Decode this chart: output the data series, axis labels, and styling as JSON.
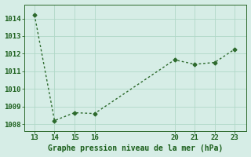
{
  "x": [
    13,
    14,
    15,
    16,
    20,
    21,
    22,
    23
  ],
  "y": [
    1014.2,
    1008.2,
    1008.65,
    1008.6,
    1011.65,
    1011.4,
    1011.5,
    1012.25
  ],
  "xticks": [
    13,
    14,
    15,
    16,
    20,
    21,
    22,
    23
  ],
  "yticks": [
    1008,
    1009,
    1010,
    1011,
    1012,
    1013,
    1014
  ],
  "xlim": [
    12.5,
    23.6
  ],
  "ylim": [
    1007.6,
    1014.8
  ],
  "line_color": "#2d6a2d",
  "marker": "D",
  "marker_size": 2.5,
  "line_width": 1.0,
  "bg_color": "#d6ede6",
  "grid_color": "#b0d8c8",
  "xlabel": "Graphe pression niveau de la mer (hPa)",
  "xlabel_color": "#1a5e1a",
  "xlabel_fontsize": 7.0,
  "tick_color": "#1a5e1a",
  "tick_fontsize": 6.5,
  "spine_color": "#2d6a2d"
}
